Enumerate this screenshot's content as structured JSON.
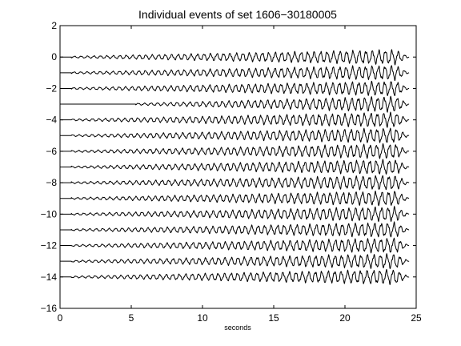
{
  "chart_data": {
    "type": "line",
    "title": "Individual events of set 1606−30180005",
    "xlabel": "seconds",
    "ylabel": "",
    "xlim": [
      0,
      25
    ],
    "ylim": [
      -16,
      2
    ],
    "xticks": [
      0,
      5,
      10,
      15,
      20,
      25
    ],
    "xtick_labels": [
      "0",
      "5",
      "10",
      "15",
      "20",
      "25"
    ],
    "yticks": [
      2,
      0,
      -2,
      -4,
      -6,
      -8,
      -10,
      -12,
      -14,
      -16
    ],
    "ytick_labels": [
      "2",
      "0",
      "−2",
      "−4",
      "−6",
      "−8",
      "−10",
      "−12",
      "−14",
      "−16"
    ],
    "grid": false,
    "line_color": "#000000",
    "trace_end": 24.5,
    "trace_frequency_hz": 2.2,
    "series": [
      {
        "offset": 0,
        "onset": 0.8,
        "peak_amplitude": 0.38
      },
      {
        "offset": -1,
        "onset": 0.8,
        "peak_amplitude": 0.38
      },
      {
        "offset": -2,
        "onset": 0.8,
        "peak_amplitude": 0.38
      },
      {
        "offset": -3,
        "onset": 5.3,
        "peak_amplitude": 0.4
      },
      {
        "offset": -4,
        "onset": 0.8,
        "peak_amplitude": 0.38
      },
      {
        "offset": -5,
        "onset": 0.8,
        "peak_amplitude": 0.38
      },
      {
        "offset": -6,
        "onset": 0.8,
        "peak_amplitude": 0.38
      },
      {
        "offset": -7,
        "onset": 0.8,
        "peak_amplitude": 0.38
      },
      {
        "offset": -8,
        "onset": 0.8,
        "peak_amplitude": 0.38
      },
      {
        "offset": -9,
        "onset": 0.8,
        "peak_amplitude": 0.38
      },
      {
        "offset": -10,
        "onset": 0.8,
        "peak_amplitude": 0.38
      },
      {
        "offset": -11,
        "onset": 0.8,
        "peak_amplitude": 0.38
      },
      {
        "offset": -12,
        "onset": 0.8,
        "peak_amplitude": 0.38
      },
      {
        "offset": -13,
        "onset": 0.8,
        "peak_amplitude": 0.38
      },
      {
        "offset": -14,
        "onset": 0.8,
        "peak_amplitude": 0.38
      }
    ]
  }
}
